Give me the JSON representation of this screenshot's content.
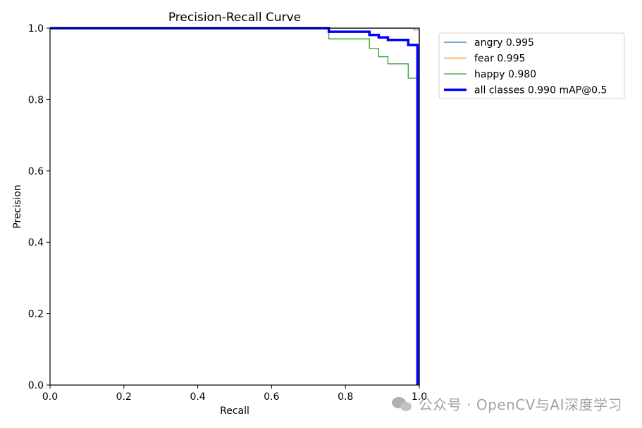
{
  "chart_data": {
    "type": "line",
    "title": "Precision-Recall Curve",
    "xlabel": "Recall",
    "ylabel": "Precision",
    "xlim": [
      0,
      1
    ],
    "ylim": [
      0,
      1
    ],
    "xticks": [
      "0.0",
      "0.2",
      "0.4",
      "0.6",
      "0.8",
      "1.0"
    ],
    "yticks": [
      "0.0",
      "0.2",
      "0.4",
      "0.6",
      "0.8",
      "1.0"
    ],
    "grid": false,
    "legend_position": "outside upper right",
    "series": [
      {
        "name": "angry 0.995",
        "color": "#1f77b4",
        "line_style": "thin",
        "x": [
          0,
          1.0,
          1.0
        ],
        "y": [
          1.0,
          1.0,
          0
        ]
      },
      {
        "name": "fear 0.995",
        "color": "#ff7f0e",
        "line_style": "thin",
        "x": [
          0,
          0.985,
          0.985,
          1.0,
          1.0
        ],
        "y": [
          1.0,
          1.0,
          0.995,
          0.995,
          0
        ]
      },
      {
        "name": "happy 0.980",
        "color": "#2ca02c",
        "line_style": "thin",
        "x": [
          0,
          0.755,
          0.755,
          0.865,
          0.865,
          0.89,
          0.89,
          0.915,
          0.915,
          0.97,
          0.97,
          0.995,
          0.995
        ],
        "y": [
          1.0,
          1.0,
          0.97,
          0.97,
          0.943,
          0.943,
          0.92,
          0.92,
          0.9,
          0.9,
          0.86,
          0.86,
          0
        ]
      },
      {
        "name": "all classes 0.990 mAP@0.5",
        "color": "#0000ff",
        "line_style": "thick",
        "x": [
          0,
          0.755,
          0.755,
          0.865,
          0.865,
          0.89,
          0.89,
          0.915,
          0.915,
          0.97,
          0.97,
          0.995,
          0.995
        ],
        "y": [
          1.0,
          1.0,
          0.99,
          0.99,
          0.981,
          0.981,
          0.974,
          0.974,
          0.967,
          0.967,
          0.953,
          0.953,
          0
        ]
      }
    ]
  },
  "watermark": {
    "icon": "wechat-icon",
    "text": "公众号 · OpenCV与AI深度学习"
  }
}
